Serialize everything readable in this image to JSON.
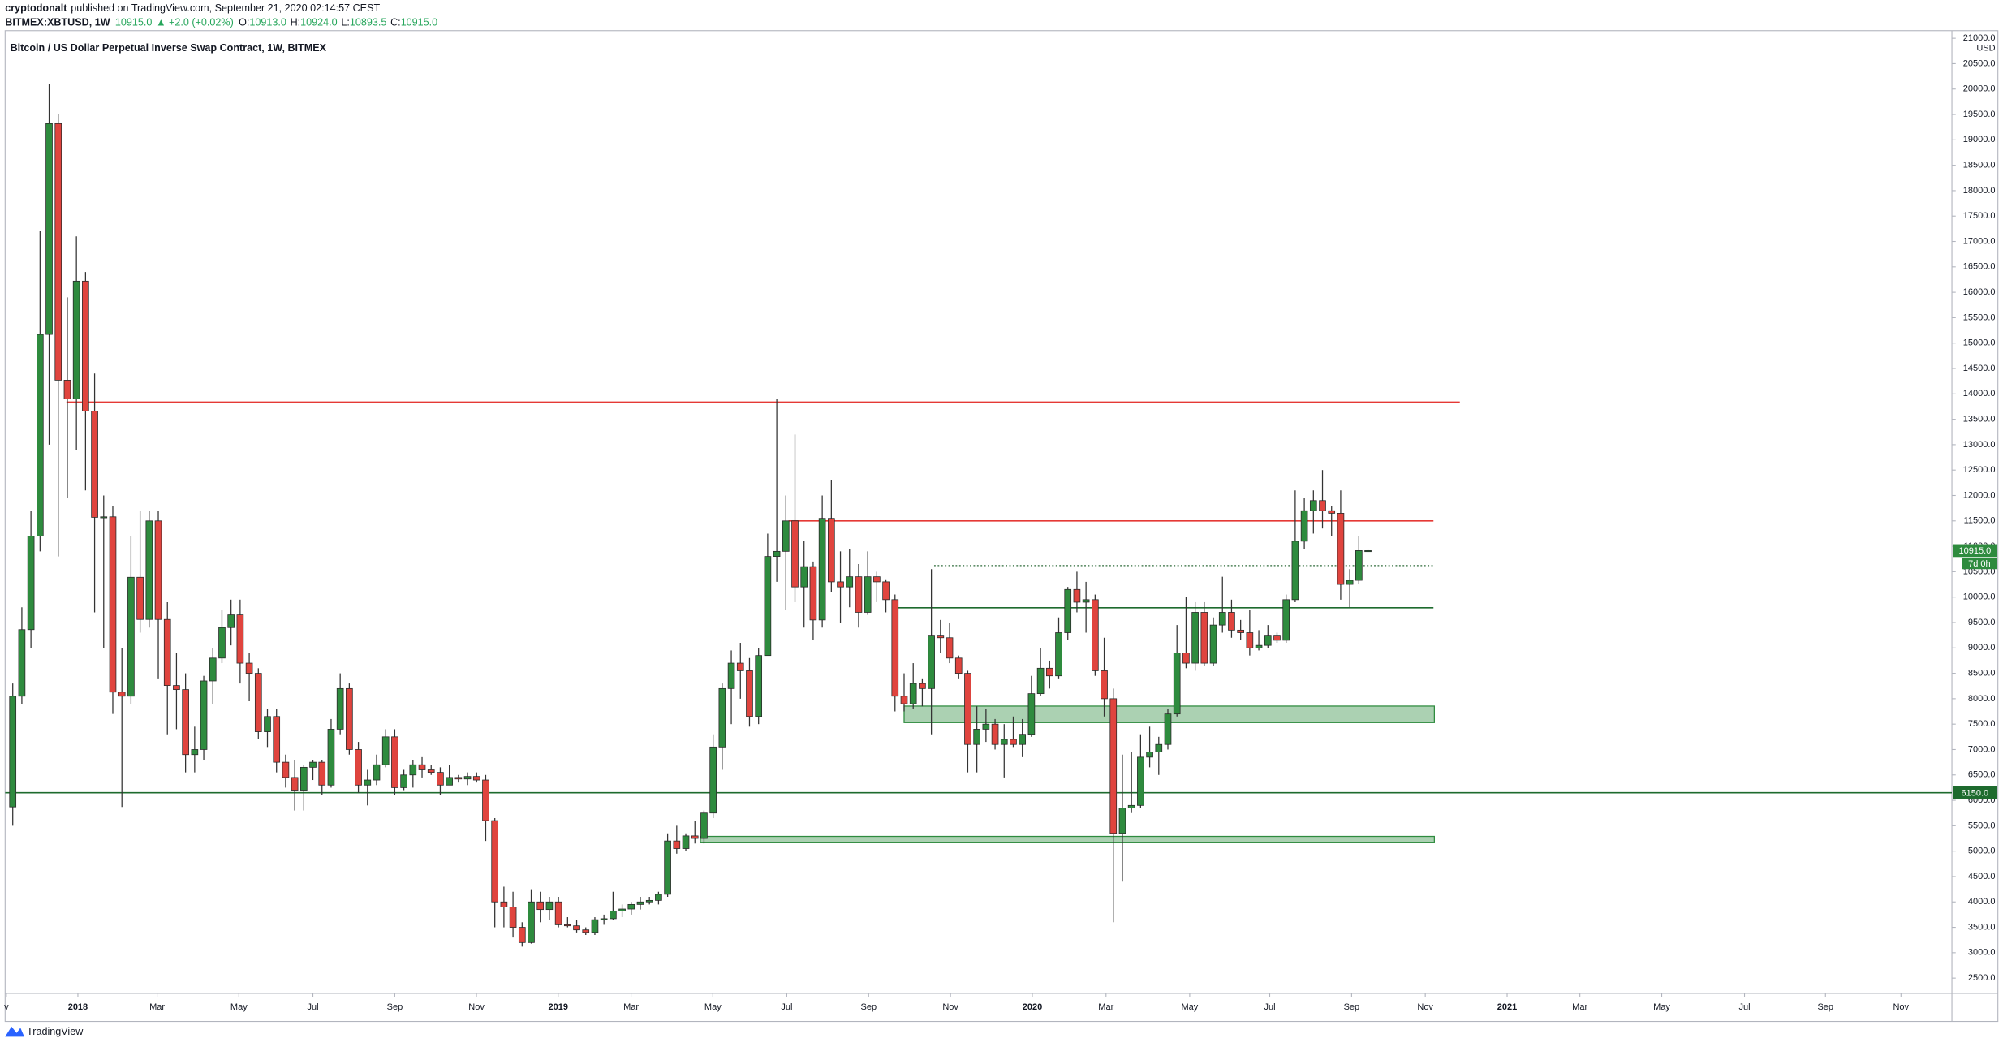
{
  "header": {
    "author": "cryptodonalt",
    "published": "published on TradingView.com, September 21, 2020 02:14:57 CEST",
    "symbol": "BITMEX:XBTUSD, 1W",
    "last": "10915.0",
    "change": "▲ +2.0 (+0.02%)",
    "o_label": "O:",
    "o": "10913.0",
    "h_label": "H:",
    "h": "10924.0",
    "l_label": "L:",
    "l": "10893.5",
    "c_label": "C:",
    "c": "10915.0"
  },
  "footer": {
    "brand": "TradingView"
  },
  "chart_data": {
    "type": "candlestick",
    "title": "Bitcoin / US Dollar Perpetual Inverse Swap Contract, 1W, BITMEX",
    "y_unit": "USD",
    "up_color": "#2e8b3e",
    "down_color": "#e0443e",
    "grid": false,
    "open": [
      5870,
      8050,
      9360,
      11200,
      15170,
      19320,
      14270,
      13900,
      16220,
      13660,
      11570,
      11580,
      8130,
      8050,
      10390,
      9560,
      11500,
      9560,
      8260,
      8180,
      6900,
      7000,
      8350,
      8800,
      9400,
      9650,
      8700,
      8500,
      7350,
      7650,
      6750,
      6450,
      6200,
      6650,
      6750,
      6300,
      7400,
      8200,
      7000,
      6300,
      6400,
      6700,
      7250,
      6250,
      6500,
      6700,
      6600,
      6550,
      6300,
      6450,
      6420,
      6470,
      6400,
      5600,
      4000,
      3900,
      3500,
      3200,
      4000,
      3850,
      4000,
      3550,
      3530,
      3450,
      3400,
      3650,
      3670,
      3820,
      3860,
      3950,
      4000,
      4030,
      4150,
      5200,
      5050,
      5300,
      5250,
      5750,
      7050,
      8200,
      8700,
      8550,
      7650,
      8850,
      10800,
      10900,
      11500,
      10200,
      10600,
      9550,
      11550,
      10300,
      10200,
      10400,
      9700,
      10400,
      10300,
      9950,
      8050,
      7900,
      8300,
      8200,
      9250,
      9200,
      8800,
      8500,
      7100,
      7400,
      7500,
      7100,
      7200,
      7100,
      7300,
      8100,
      8600,
      8450,
      9300,
      10150,
      9900,
      9950,
      8550,
      8000,
      5350,
      5850,
      5900,
      6850,
      6950,
      7100,
      7700,
      8900,
      8700,
      9700,
      8700,
      9450,
      9700,
      9350,
      9300,
      9000,
      9050,
      9250,
      9150,
      9950,
      11100,
      11700,
      11900,
      11700,
      11650,
      10250,
      10330,
      10913
    ],
    "high": [
      8300,
      9800,
      11700,
      17200,
      20100,
      19500,
      15900,
      17100,
      16400,
      14400,
      12000,
      11800,
      9000,
      11200,
      11700,
      11700,
      11700,
      9900,
      8900,
      8500,
      7450,
      8450,
      9000,
      9750,
      9950,
      9950,
      8900,
      8600,
      7800,
      7800,
      6900,
      6800,
      6700,
      6800,
      6800,
      7600,
      8500,
      8300,
      7150,
      6600,
      6900,
      7400,
      7400,
      6600,
      6800,
      6850,
      6700,
      6650,
      6700,
      6500,
      6550,
      6550,
      6500,
      5650,
      4300,
      4200,
      3600,
      4250,
      4200,
      4100,
      4100,
      3700,
      3650,
      3500,
      3700,
      3750,
      4200,
      3950,
      4000,
      4100,
      4100,
      4200,
      5350,
      5500,
      5350,
      5600,
      5800,
      7300,
      8300,
      8950,
      9100,
      8800,
      9000,
      11250,
      13900,
      12000,
      13200,
      11100,
      10700,
      12000,
      12300,
      10900,
      10950,
      10650,
      10900,
      10500,
      10350,
      10050,
      8500,
      8700,
      8400,
      10550,
      9550,
      9500,
      8850,
      8550,
      7850,
      7800,
      7600,
      7500,
      7650,
      7600,
      8450,
      9000,
      8750,
      9600,
      10200,
      10500,
      10300,
      10050,
      9200,
      8200,
      6900,
      6950,
      7300,
      7450,
      7250,
      7800,
      9450,
      10000,
      9900,
      9900,
      9600,
      10400,
      9950,
      9550,
      9750,
      9350,
      9450,
      9300,
      10050,
      12100,
      11950,
      12100,
      12500,
      11800,
      12100,
      10550,
      11200,
      10924
    ],
    "low": [
      5500,
      7900,
      9000,
      10900,
      13000,
      10800,
      11950,
      12900,
      12100,
      9700,
      9000,
      7700,
      5870,
      7900,
      9300,
      9400,
      8400,
      7300,
      7400,
      6550,
      6550,
      6800,
      7900,
      8700,
      9050,
      8300,
      7950,
      7200,
      7050,
      6550,
      6250,
      5800,
      5800,
      6400,
      6100,
      6250,
      7300,
      6900,
      6150,
      5900,
      6300,
      6650,
      6100,
      6200,
      6250,
      6450,
      6500,
      6100,
      6300,
      6350,
      6300,
      6350,
      5200,
      3500,
      3500,
      3300,
      3120,
      3180,
      3600,
      3650,
      3500,
      3500,
      3400,
      3350,
      3350,
      3550,
      3650,
      3700,
      3750,
      3850,
      3950,
      3950,
      4100,
      4950,
      5000,
      5150,
      5150,
      5650,
      6600,
      7500,
      8000,
      7450,
      7500,
      8850,
      10300,
      9750,
      9900,
      9400,
      9150,
      9400,
      10100,
      9500,
      9800,
      9400,
      9650,
      9900,
      9700,
      7750,
      7750,
      7800,
      7850,
      7300,
      8900,
      8700,
      8400,
      6550,
      6550,
      7150,
      7000,
      6450,
      7050,
      6850,
      7250,
      8050,
      8200,
      8400,
      9150,
      9700,
      9300,
      8450,
      7650,
      3600,
      4400,
      5750,
      5850,
      6650,
      6500,
      7000,
      7650,
      8600,
      8550,
      8650,
      8650,
      9300,
      9200,
      9150,
      8850,
      8950,
      9000,
      9100,
      9100,
      9900,
      10950,
      11250,
      11350,
      11200,
      9950,
      9800,
      10250,
      10893.5
    ],
    "close": [
      8050,
      9360,
      11200,
      15170,
      19320,
      14270,
      13900,
      16220,
      13660,
      11570,
      11580,
      8130,
      8050,
      10390,
      9560,
      11500,
      9560,
      8260,
      8180,
      6900,
      7000,
      8350,
      8800,
      9400,
      9650,
      8700,
      8500,
      7350,
      7650,
      6750,
      6450,
      6200,
      6650,
      6750,
      6300,
      7400,
      8200,
      7000,
      6300,
      6400,
      6700,
      7250,
      6250,
      6500,
      6700,
      6600,
      6550,
      6300,
      6450,
      6420,
      6470,
      6400,
      5600,
      4000,
      3900,
      3500,
      3200,
      4000,
      3850,
      4000,
      3550,
      3530,
      3450,
      3400,
      3650,
      3670,
      3820,
      3860,
      3950,
      4000,
      4030,
      4150,
      5200,
      5050,
      5300,
      5250,
      5750,
      7050,
      8200,
      8700,
      8550,
      7650,
      8850,
      10800,
      10900,
      11500,
      10200,
      10600,
      9550,
      11550,
      10300,
      10200,
      10400,
      9700,
      10400,
      10300,
      9950,
      8050,
      7900,
      8300,
      8200,
      9250,
      9200,
      8800,
      8500,
      7100,
      7400,
      7500,
      7100,
      7200,
      7100,
      7300,
      8100,
      8600,
      8450,
      9300,
      10150,
      9900,
      9950,
      8550,
      8000,
      5350,
      5850,
      5900,
      6850,
      6950,
      7100,
      7700,
      8900,
      8700,
      9700,
      8700,
      9450,
      9700,
      9350,
      9300,
      9000,
      9050,
      9250,
      9150,
      9950,
      11100,
      11700,
      11900,
      11700,
      11650,
      10250,
      10330,
      10915,
      10915
    ],
    "xlim": [
      -0.84,
      213.2
    ],
    "xticks": [
      {
        "value": -0.7,
        "label": "v"
      },
      {
        "value": 7.16,
        "label": "2018"
      },
      {
        "value": 15.87,
        "label": "Mar"
      },
      {
        "value": 24.86,
        "label": "May"
      },
      {
        "value": 33.0,
        "label": "Jul"
      },
      {
        "value": 42.0,
        "label": "Sep"
      },
      {
        "value": 50.98,
        "label": "Nov"
      },
      {
        "value": 59.97,
        "label": "2019"
      },
      {
        "value": 67.98,
        "label": "Mar"
      },
      {
        "value": 76.97,
        "label": "May"
      },
      {
        "value": 85.1,
        "label": "Jul"
      },
      {
        "value": 94.1,
        "label": "Sep"
      },
      {
        "value": 103.1,
        "label": "Nov"
      },
      {
        "value": 112.1,
        "label": "2020"
      },
      {
        "value": 120.2,
        "label": "Mar"
      },
      {
        "value": 129.4,
        "label": "May"
      },
      {
        "value": 138.2,
        "label": "Jul"
      },
      {
        "value": 147.2,
        "label": "Sep"
      },
      {
        "value": 155.3,
        "label": "Nov"
      },
      {
        "value": 164.3,
        "label": "2021"
      },
      {
        "value": 172.3,
        "label": "Mar"
      },
      {
        "value": 181.3,
        "label": "May"
      },
      {
        "value": 190.4,
        "label": "Jul"
      },
      {
        "value": 199.3,
        "label": "Sep"
      },
      {
        "value": 207.6,
        "label": "Nov"
      }
    ],
    "ylim": [
      2200,
      21150
    ],
    "yticks": [
      {
        "value": 2500,
        "label": "2500.0"
      },
      {
        "value": 3000,
        "label": "3000.0"
      },
      {
        "value": 3500,
        "label": "3500.0"
      },
      {
        "value": 4000,
        "label": "4000.0"
      },
      {
        "value": 4500,
        "label": "4500.0"
      },
      {
        "value": 5000,
        "label": "5000.0"
      },
      {
        "value": 5500,
        "label": "5500.0"
      },
      {
        "value": 6000,
        "label": "6000.0"
      },
      {
        "value": 6500,
        "label": "6500.0"
      },
      {
        "value": 7000,
        "label": "7000.0"
      },
      {
        "value": 7500,
        "label": "7500.0"
      },
      {
        "value": 8000,
        "label": "8000.0"
      },
      {
        "value": 8500,
        "label": "8500.0"
      },
      {
        "value": 9000,
        "label": "9000.0"
      },
      {
        "value": 9500,
        "label": "9500.0"
      },
      {
        "value": 10000,
        "label": "10000.0"
      },
      {
        "value": 10500,
        "label": "10500.0"
      },
      {
        "value": 11000,
        "label": "11000.0"
      },
      {
        "value": 11500,
        "label": "11500.0"
      },
      {
        "value": 12000,
        "label": "12000.0"
      },
      {
        "value": 12500,
        "label": "12500.0"
      },
      {
        "value": 13000,
        "label": "13000.0"
      },
      {
        "value": 13500,
        "label": "13500.0"
      },
      {
        "value": 14000,
        "label": "14000.0"
      },
      {
        "value": 14500,
        "label": "14500.0"
      },
      {
        "value": 15000,
        "label": "15000.0"
      },
      {
        "value": 15500,
        "label": "15500.0"
      },
      {
        "value": 16000,
        "label": "16000.0"
      },
      {
        "value": 16500,
        "label": "16500.0"
      },
      {
        "value": 17000,
        "label": "17000.0"
      },
      {
        "value": 17500,
        "label": "17500.0"
      },
      {
        "value": 18000,
        "label": "18000.0"
      },
      {
        "value": 18500,
        "label": "18500.0"
      },
      {
        "value": 19000,
        "label": "19000.0"
      },
      {
        "value": 19500,
        "label": "19500.0"
      },
      {
        "value": 20000,
        "label": "20000.0"
      },
      {
        "value": 20500,
        "label": "20500.0"
      },
      {
        "value": 21000,
        "label": "21000.0"
      }
    ],
    "last_price": {
      "value": 10915,
      "label": "10915.0"
    },
    "countdown": "7d 0h",
    "drawings": [
      {
        "type": "hline",
        "value": 13838,
        "x_range": [
          5.9,
          159.1
        ],
        "color": "#e53935"
      },
      {
        "type": "hline",
        "value": 11500,
        "x_range": [
          85.3,
          156.2
        ],
        "color": "#e53935"
      },
      {
        "type": "hline",
        "value": 10620,
        "x_range": [
          101.3,
          156.2
        ],
        "color": "#2e6b3a",
        "style": "dotted"
      },
      {
        "type": "hline",
        "value": 9790,
        "x_range": [
          96.9,
          156.2
        ],
        "color": "#1e6b2e"
      },
      {
        "type": "hline",
        "value": 6150,
        "label": "6150.0",
        "color": "#1e6b2e"
      },
      {
        "type": "zone",
        "low": 7530,
        "high": 7855,
        "x_range": [
          98.0,
          156.3
        ],
        "color": "#2e8b3e"
      },
      {
        "type": "zone",
        "low": 5165,
        "high": 5290,
        "x_range": [
          75.6,
          156.3
        ],
        "color": "#2e8b3e"
      }
    ]
  }
}
